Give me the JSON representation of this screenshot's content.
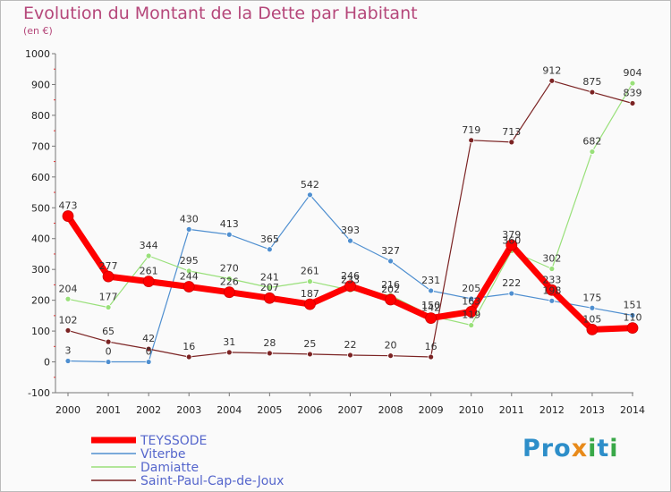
{
  "title": "Evolution du Montant de la Dette par Habitant",
  "subtitle": "(en €)",
  "logo": {
    "text": "Proxiti"
  },
  "chart_data": {
    "type": "line",
    "title": "Evolution du Montant de la Dette par Habitant",
    "subtitle": "(en €)",
    "xlabel": "",
    "ylabel": "",
    "x": [
      "2000",
      "2001",
      "2002",
      "2003",
      "2004",
      "2005",
      "2006",
      "2007",
      "2008",
      "2009",
      "2010",
      "2011",
      "2012",
      "2013",
      "2014"
    ],
    "ylim": [
      -100,
      1000
    ],
    "yticks": [
      -100,
      0,
      100,
      200,
      300,
      400,
      500,
      600,
      700,
      800,
      900,
      1000
    ],
    "grid": false,
    "legend_position": "bottom-left",
    "series": [
      {
        "name": "TEYSSODE",
        "color": "#ff0000",
        "values": [
          473,
          277,
          261,
          244,
          226,
          207,
          187,
          246,
          202,
          142,
          163,
          379,
          233,
          105,
          110
        ]
      },
      {
        "name": "Viterbe",
        "color": "#4f8fd0",
        "values": [
          3,
          0,
          0,
          430,
          413,
          365,
          542,
          393,
          327,
          231,
          205,
          222,
          198,
          175,
          151
        ]
      },
      {
        "name": "Damiatte",
        "color": "#99e07a",
        "values": [
          204,
          177,
          344,
          295,
          270,
          241,
          261,
          233,
          216,
          150,
          119,
          360,
          302,
          682,
          904
        ]
      },
      {
        "name": "Saint-Paul-Cap-de-Joux",
        "color": "#7b2323",
        "values": [
          102,
          65,
          42,
          16,
          31,
          28,
          25,
          22,
          20,
          16,
          719,
          713,
          912,
          875,
          839
        ]
      }
    ]
  }
}
